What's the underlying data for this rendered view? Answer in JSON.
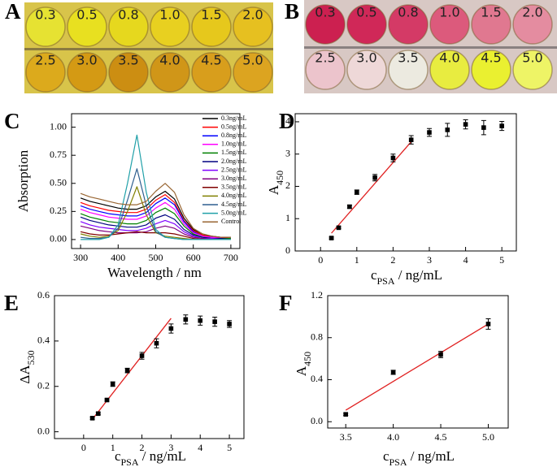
{
  "photos": [
    {
      "panel": "A",
      "labels": [
        "0.3",
        "0.5",
        "0.8",
        "1.0",
        "1.5",
        "2.0",
        "2.5",
        "3.0",
        "3.5",
        "4.0",
        "4.5",
        "5.0"
      ],
      "colors": [
        "#e6e232",
        "#e8e020",
        "#e6d81e",
        "#e8d020",
        "#e6c81c",
        "#e6c020",
        "#dcaa1c",
        "#d49a14",
        "#cc8e12",
        "#d09618",
        "#d89e1c",
        "#dca420"
      ]
    },
    {
      "panel": "B",
      "labels": [
        "0.3",
        "0.5",
        "0.8",
        "1.0",
        "1.5",
        "2.0",
        "2.5",
        "3.0",
        "3.5",
        "4.0",
        "4.5",
        "5.0"
      ],
      "colors": [
        "#cc2050",
        "#d02858",
        "#d43a66",
        "#dc5a7c",
        "#e07890",
        "#e48ca0",
        "#ecc4cc",
        "#eed8d8",
        "#eceae0",
        "#e8ec40",
        "#eaf030",
        "#eef466"
      ]
    }
  ],
  "chart_data": [
    {
      "type": "line",
      "panel": "C",
      "xlabel": {
        "main": "Wavelength / nm"
      },
      "ylabel": {
        "main": "Absorption"
      },
      "x": [
        300,
        325,
        350,
        375,
        400,
        425,
        450,
        475,
        500,
        525,
        550,
        575,
        600,
        625,
        650,
        675,
        700
      ],
      "xlim": [
        276,
        724
      ],
      "xticks": [
        300,
        400,
        500,
        600,
        700
      ],
      "ylim": [
        -0.08,
        1.12
      ],
      "yticks": [
        {
          "value": 0,
          "label": "0.00"
        },
        0.25,
        {
          "value": 0.5,
          "label": "0.50"
        },
        0.75,
        {
          "value": 1,
          "label": "1.00"
        }
      ],
      "series": [
        {
          "name": "0.3ng/mL",
          "color": "#000000",
          "values": [
            0.37,
            0.34,
            0.32,
            0.3,
            0.28,
            0.27,
            0.27,
            0.3,
            0.38,
            0.43,
            0.36,
            0.19,
            0.09,
            0.04,
            0.03,
            0.02,
            0.02
          ]
        },
        {
          "name": "0.5ng/mL",
          "color": "#ff0000",
          "values": [
            0.33,
            0.3,
            0.28,
            0.26,
            0.25,
            0.24,
            0.24,
            0.27,
            0.35,
            0.4,
            0.33,
            0.17,
            0.08,
            0.04,
            0.02,
            0.02,
            0.01
          ]
        },
        {
          "name": "0.8ng/mL",
          "color": "#0000ff",
          "values": [
            0.3,
            0.27,
            0.25,
            0.23,
            0.22,
            0.21,
            0.21,
            0.24,
            0.32,
            0.37,
            0.31,
            0.16,
            0.07,
            0.03,
            0.02,
            0.01,
            0.01
          ]
        },
        {
          "name": "1.0ng/mL",
          "color": "#ff00ff",
          "values": [
            0.27,
            0.24,
            0.22,
            0.2,
            0.19,
            0.18,
            0.18,
            0.21,
            0.28,
            0.33,
            0.27,
            0.14,
            0.06,
            0.03,
            0.02,
            0.01,
            0.01
          ]
        },
        {
          "name": "1.5ng/mL",
          "color": "#008000",
          "values": [
            0.23,
            0.2,
            0.18,
            0.16,
            0.15,
            0.14,
            0.14,
            0.17,
            0.24,
            0.28,
            0.23,
            0.12,
            0.05,
            0.02,
            0.01,
            0.01,
            0.01
          ]
        },
        {
          "name": "2.0ng/mL",
          "color": "#000080",
          "values": [
            0.2,
            0.17,
            0.15,
            0.13,
            0.12,
            0.11,
            0.11,
            0.13,
            0.19,
            0.22,
            0.18,
            0.09,
            0.04,
            0.02,
            0.01,
            0.01,
            0.0
          ]
        },
        {
          "name": "2.5ng/mL",
          "color": "#8000ff",
          "values": [
            0.16,
            0.13,
            0.11,
            0.1,
            0.09,
            0.08,
            0.08,
            0.1,
            0.14,
            0.17,
            0.14,
            0.07,
            0.03,
            0.01,
            0.01,
            0.0,
            0.0
          ]
        },
        {
          "name": "3.0ng/mL",
          "color": "#800080",
          "values": [
            0.12,
            0.1,
            0.08,
            0.07,
            0.06,
            0.06,
            0.06,
            0.07,
            0.1,
            0.12,
            0.1,
            0.05,
            0.02,
            0.01,
            0.0,
            0.0,
            0.0
          ]
        },
        {
          "name": "3.5ng/mL",
          "color": "#800000",
          "values": [
            0.07,
            0.05,
            0.04,
            0.04,
            0.05,
            0.06,
            0.07,
            0.06,
            0.06,
            0.06,
            0.05,
            0.03,
            0.01,
            0.0,
            0.0,
            0.0,
            0.0
          ]
        },
        {
          "name": "4.0ng/mL",
          "color": "#808000",
          "values": [
            0.05,
            0.03,
            0.02,
            0.03,
            0.08,
            0.25,
            0.47,
            0.22,
            0.06,
            0.03,
            0.02,
            0.01,
            0.0,
            0.0,
            0.0,
            0.0,
            0.0
          ]
        },
        {
          "name": "4.5ng/mL",
          "color": "#2f5f8f",
          "values": [
            0.02,
            0.01,
            0.01,
            0.02,
            0.1,
            0.35,
            0.63,
            0.3,
            0.07,
            0.02,
            0.01,
            0.0,
            0.0,
            0.0,
            0.0,
            0.0,
            0.0
          ]
        },
        {
          "name": "5.0ng/mL",
          "color": "#20a0a8",
          "values": [
            0.0,
            0.0,
            0.0,
            0.02,
            0.13,
            0.5,
            0.93,
            0.42,
            0.09,
            0.02,
            0.01,
            0.0,
            0.0,
            0.0,
            0.0,
            0.0,
            0.0
          ]
        },
        {
          "name": "Control",
          "color": "#996633",
          "values": [
            0.41,
            0.38,
            0.36,
            0.34,
            0.32,
            0.31,
            0.31,
            0.34,
            0.43,
            0.5,
            0.42,
            0.22,
            0.1,
            0.05,
            0.03,
            0.02,
            0.02
          ]
        }
      ]
    },
    {
      "type": "scatter",
      "panel": "D",
      "xlabel": {
        "main": "c",
        "sub": "PSA",
        "rest": " / ng/mL"
      },
      "ylabel": {
        "main": "A",
        "sub": "450"
      },
      "xlim": [
        -0.7,
        5.4
      ],
      "xticks": [
        0,
        1,
        2,
        3,
        4,
        5
      ],
      "ylim": [
        0,
        4.25
      ],
      "yticks": [
        0,
        1,
        2,
        3,
        4
      ],
      "series": [
        {
          "color": "#000000",
          "x": [
            0.3,
            0.5,
            0.8,
            1.0,
            1.5,
            2.0,
            2.5,
            3.0,
            3.5,
            4.0,
            4.5,
            5.0
          ],
          "values": [
            0.4,
            0.72,
            1.37,
            1.82,
            2.27,
            2.88,
            3.44,
            3.67,
            3.75,
            3.92,
            3.82,
            3.87
          ],
          "errors": [
            0.03,
            0.03,
            0.05,
            0.07,
            0.1,
            0.12,
            0.13,
            0.12,
            0.2,
            0.14,
            0.22,
            0.14
          ]
        }
      ],
      "fit": {
        "color": "#e02020",
        "x": [
          0.3,
          2.5
        ],
        "values": [
          0.55,
          3.38
        ]
      }
    },
    {
      "type": "scatter",
      "panel": "E",
      "xlabel": {
        "main": "c",
        "sub": "PSA",
        "rest": " / ng/mL"
      },
      "ylabel": {
        "main": "ΔA",
        "sub": "530"
      },
      "xlim": [
        -1.0,
        5.5
      ],
      "xticks": [
        0,
        1,
        2,
        3,
        4,
        5
      ],
      "ylim": [
        -0.03,
        0.6
      ],
      "yticks": [
        {
          "value": 0,
          "label": "0.0"
        },
        0.2,
        0.4,
        0.6
      ],
      "series": [
        {
          "color": "#000000",
          "x": [
            0.3,
            0.5,
            0.8,
            1.0,
            1.5,
            2.0,
            2.5,
            3.0,
            3.5,
            4.0,
            4.5,
            5.0
          ],
          "values": [
            0.06,
            0.08,
            0.14,
            0.21,
            0.27,
            0.335,
            0.39,
            0.455,
            0.495,
            0.49,
            0.485,
            0.475
          ],
          "errors": [
            0.005,
            0.005,
            0.005,
            0.01,
            0.01,
            0.015,
            0.02,
            0.02,
            0.02,
            0.02,
            0.02,
            0.015
          ]
        }
      ],
      "fit": {
        "color": "#e02020",
        "x": [
          0.3,
          3.0
        ],
        "values": [
          0.055,
          0.5
        ]
      }
    },
    {
      "type": "scatter",
      "panel": "F",
      "xlabel": {
        "main": "c",
        "sub": "PSA",
        "rest": " / ng/mL"
      },
      "ylabel": {
        "main": "A",
        "sub": "450"
      },
      "xlim": [
        3.31,
        5.21
      ],
      "xticks": [
        3.5,
        {
          "value": 4,
          "label": "4.0"
        },
        4.5,
        {
          "value": 5,
          "label": "5.0"
        }
      ],
      "ylim": [
        -0.06,
        1.2
      ],
      "yticks": [
        {
          "value": 0,
          "label": "0.0"
        },
        0.4,
        0.8,
        1.2
      ],
      "series": [
        {
          "color": "#000000",
          "x": [
            3.5,
            4.0,
            4.5,
            5.0
          ],
          "values": [
            0.07,
            0.47,
            0.64,
            0.93
          ],
          "errors": [
            0.01,
            0.02,
            0.03,
            0.05
          ]
        }
      ],
      "fit": {
        "color": "#e02020",
        "x": [
          3.5,
          5.0
        ],
        "values": [
          0.11,
          0.93
        ]
      }
    }
  ]
}
